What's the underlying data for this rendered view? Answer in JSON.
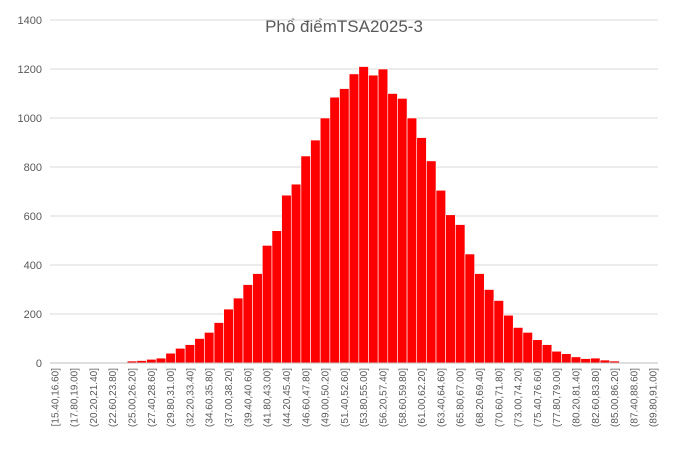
{
  "chart_data": {
    "type": "bar",
    "title": "Phổ điểmTSA2025-3",
    "xlabel": "",
    "ylabel": "",
    "ylim": [
      0,
      1400
    ],
    "yticks": [
      "0",
      "200",
      "400",
      "600",
      "800",
      "1000",
      "1200",
      "1400"
    ],
    "grid": true,
    "legend": "none",
    "bar_color": "#ff0000",
    "categories": [
      "[15.40,16.60]",
      "(16.60,17.80]",
      "(17.80,19.00]",
      "(19.00,20.20]",
      "(20.20,21.40]",
      "(21.40,22.60]",
      "(22.60,23.80]",
      "(23.80,25.00]",
      "(25.00,26.20]",
      "(26.20,27.40]",
      "(27.40,28.60]",
      "(28.60,29.80]",
      "(29.80,31.00]",
      "(31.00,32.20]",
      "(32.20,33.40]",
      "(33.40,34.60]",
      "(34.60,35.80]",
      "(35.80,37.00]",
      "(37.00,38.20]",
      "(38.20,39.40]",
      "(39.40,40.60]",
      "(40.60,41.80]",
      "(41.80,43.00]",
      "(43.00,44.20]",
      "(44.20,45.40]",
      "(45.40,46.60]",
      "(46.60,47.80]",
      "(47.80,49.00]",
      "(49.00,50.20]",
      "(50.20,51.40]",
      "(51.40,52.60]",
      "(52.60,53.80]",
      "(53.80,55.00]",
      "(55.00,56.20]",
      "(56.20,57.40]",
      "(57.40,58.60]",
      "(58.60,59.80]",
      "(59.80,61.00]",
      "(61.00,62.20]",
      "(62.20,63.40]",
      "(63.40,64.60]",
      "(64.60,65.80]",
      "(65.80,67.00]",
      "(67.00,68.20]",
      "(68.20,69.40]",
      "(69.40,70.60]",
      "(70.60,71.80]",
      "(71.80,73.00]",
      "(73.00,74.20]",
      "(74.20,75.40]",
      "(75.40,76.60]",
      "(76.60,77.80]",
      "(77.80,79.00]",
      "(79.00,80.20]",
      "(80.20,81.40]",
      "(81.40,82.60]",
      "(82.60,83.80]",
      "(83.80,85.00]",
      "(85.00,86.20]",
      "(86.20,87.40]",
      "(87.40,88.60]",
      "(88.60,89.80]",
      "(89.80,91.00]"
    ],
    "visible_xtick_labels": [
      "[15.40,16.60]",
      "(17.80,19.00]",
      "(20.20,21.40]",
      "(22.60,23.80]",
      "(25.00,26.20]",
      "(27.40,28.60]",
      "(29.80,31.00]",
      "(32.20,33.40]",
      "(34.60,35.80]",
      "(37.00,38.20]",
      "(39.40,40.60]",
      "(41.80,43.00]",
      "(44.20,45.40]",
      "(46.60,47.80]",
      "(49.00,50.20]",
      "(51.40,52.60]",
      "(53.80,55.00]",
      "(56.20,57.40]",
      "(58.60,59.80]",
      "(61.00,62.20]",
      "(63.40,64.60]",
      "(65.80,67.00]",
      "(68.20,69.40]",
      "(70.60,71.80]",
      "(73.00,74.20]",
      "(75.40,76.60]",
      "(77.80,79.00]",
      "(80.20,81.40]",
      "(82.60,83.80]",
      "(85.00,86.20]",
      "(87.40,88.60]",
      "(89.80,91.00]"
    ],
    "values": [
      0,
      0,
      0,
      0,
      0,
      1,
      3,
      2,
      8,
      10,
      15,
      20,
      40,
      60,
      75,
      100,
      125,
      165,
      220,
      265,
      320,
      365,
      480,
      540,
      685,
      730,
      845,
      910,
      1000,
      1085,
      1120,
      1180,
      1210,
      1175,
      1200,
      1100,
      1080,
      1000,
      920,
      825,
      705,
      605,
      565,
      445,
      365,
      300,
      255,
      195,
      145,
      125,
      95,
      75,
      48,
      38,
      25,
      18,
      20,
      12,
      8,
      2,
      1,
      0,
      0
    ]
  }
}
